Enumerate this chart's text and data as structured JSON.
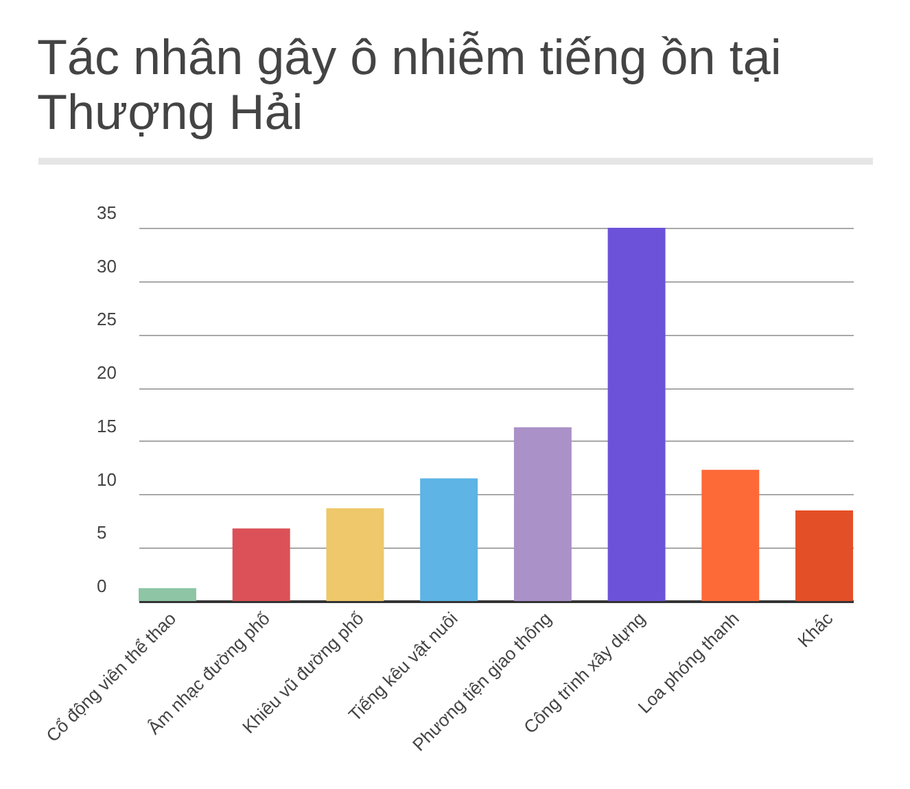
{
  "chart_data": {
    "type": "bar",
    "title": "Tác nhân gây ô nhiễm tiếng ồn tại Thượng Hải",
    "categories": [
      "Cổ động viên thể thao",
      "Âm nhạc đường phố",
      "Khiêu vũ đường phố",
      "Tiếng kêu vật nuôi",
      "Phương tiện giao thông",
      "Công trình xây dựng",
      "Loa phóng thanh",
      "Khác"
    ],
    "values": [
      1.2,
      6.8,
      8.7,
      11.5,
      16.3,
      35,
      12.3,
      8.5
    ],
    "colors": [
      "#8dc5a5",
      "#db5157",
      "#eec86a",
      "#5db4e5",
      "#aa91c7",
      "#6c52d9",
      "#fd6a38",
      "#e34f26"
    ],
    "ylim": [
      0,
      35
    ],
    "yticks": [
      0,
      5,
      10,
      15,
      20,
      25,
      30,
      35
    ],
    "grid": "y"
  }
}
